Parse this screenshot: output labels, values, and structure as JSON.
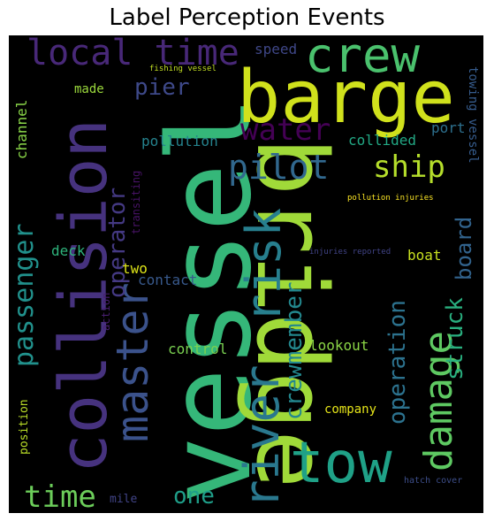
{
  "title": "Label Perception Events",
  "words": [
    {
      "text": "vessel",
      "color": "#35b779"
    },
    {
      "text": "bridge",
      "color": "#a0da39"
    },
    {
      "text": "barge",
      "color": "#d0e11c"
    },
    {
      "text": "collision",
      "color": "#46327e"
    },
    {
      "text": "tow",
      "color": "#1fa187"
    },
    {
      "text": "crew",
      "color": "#4ac16d"
    },
    {
      "text": "river",
      "color": "#2a788e"
    },
    {
      "text": "risk",
      "color": "#277f8e"
    },
    {
      "text": "master",
      "color": "#3b528b"
    },
    {
      "text": "damage",
      "color": "#5ec962"
    },
    {
      "text": "local time",
      "color": "#482878"
    },
    {
      "text": "pilot",
      "color": "#31688e"
    },
    {
      "text": "ship",
      "color": "#b5de2b"
    },
    {
      "text": "water",
      "color": "#440154"
    },
    {
      "text": "passenger",
      "color": "#21918c"
    },
    {
      "text": "operator",
      "color": "#443983"
    },
    {
      "text": "crewmember",
      "color": "#23888e"
    },
    {
      "text": "operation",
      "color": "#2c728e"
    },
    {
      "text": "struck",
      "color": "#29af7f"
    },
    {
      "text": "board",
      "color": "#32648e"
    },
    {
      "text": "time",
      "color": "#6ccd5a"
    },
    {
      "text": "one",
      "color": "#1f9e89"
    },
    {
      "text": "pier",
      "color": "#3e4989"
    },
    {
      "text": "pollution",
      "color": "#25838e"
    },
    {
      "text": "collided",
      "color": "#22a884"
    },
    {
      "text": "boat",
      "color": "#c8e020"
    },
    {
      "text": "lookout",
      "color": "#8bd646"
    },
    {
      "text": "control",
      "color": "#7ad151"
    },
    {
      "text": "company",
      "color": "#e5e419"
    },
    {
      "text": "channel",
      "color": "#89d548"
    },
    {
      "text": "deck",
      "color": "#2eb37c"
    },
    {
      "text": "contact",
      "color": "#38598c"
    },
    {
      "text": "two",
      "color": "#dde318"
    },
    {
      "text": "made",
      "color": "#9bd93c"
    },
    {
      "text": "speed",
      "color": "#3f4788"
    },
    {
      "text": "port",
      "color": "#2d708e"
    },
    {
      "text": "towing vessel",
      "color": "#365c8d"
    },
    {
      "text": "transiting",
      "color": "#471365"
    },
    {
      "text": "action",
      "color": "#481f70"
    },
    {
      "text": "position",
      "color": "#bade28"
    },
    {
      "text": "mile",
      "color": "#414487"
    },
    {
      "text": "neither",
      "color": "#3a548c"
    },
    {
      "text": "hatch cover",
      "color": "#3d4e8a"
    },
    {
      "text": "fishing vessel",
      "color": "#c2df23"
    },
    {
      "text": "pollution injuries",
      "color": "#fde725"
    },
    {
      "text": "injuries reported",
      "color": "#414487"
    }
  ]
}
